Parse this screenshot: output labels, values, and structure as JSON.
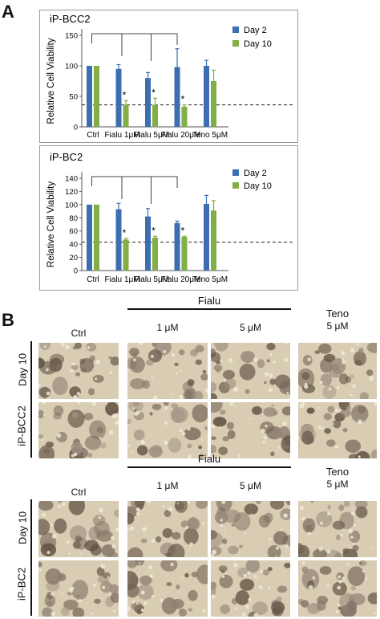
{
  "panel_a": {
    "letter": "A"
  },
  "panel_b": {
    "letter": "B"
  },
  "chart_data": [
    {
      "type": "bar",
      "title": "iP-BCC2",
      "ylabel": "Relative Cell Viability",
      "xlabel": "",
      "categories": [
        "Ctrl",
        "Fialu 1μM",
        "Fialu 5μM",
        "Fialu 20μM",
        "Teno 5μM"
      ],
      "ylim": [
        0,
        150
      ],
      "yticks": [
        "0",
        "50",
        "100",
        "150"
      ],
      "ytick_values": [
        0,
        50,
        100,
        150
      ],
      "legend_position": "top-right",
      "series": [
        {
          "name": "Day 2",
          "color": "#3d6eb0",
          "values": [
            100,
            95,
            80,
            98,
            100
          ],
          "errors": [
            0,
            7,
            9,
            30,
            9
          ]
        },
        {
          "name": "Day 10",
          "color": "#83ad45",
          "values": [
            100,
            36,
            36,
            33,
            75
          ],
          "errors": [
            0,
            7,
            11,
            3,
            18
          ]
        }
      ],
      "threshold": 36,
      "significance_marks": [
        "",
        "*",
        "*",
        "*",
        ""
      ]
    },
    {
      "type": "bar",
      "title": "iP-BC2",
      "ylabel": "Relative Cell Viability",
      "xlabel": "",
      "categories": [
        "Ctrl",
        "Fialu 1μM",
        "Fialu 5μM",
        "Fialu 20μM",
        "Teno 5μM"
      ],
      "ylim": [
        0,
        140
      ],
      "yticks": [
        "0",
        "20",
        "40",
        "60",
        "80",
        "100",
        "120",
        "140"
      ],
      "ytick_values": [
        0,
        20,
        40,
        60,
        80,
        100,
        120,
        140
      ],
      "legend_position": "top-right",
      "series": [
        {
          "name": "Day 2",
          "color": "#3d6eb0",
          "values": [
            100,
            93,
            82,
            72,
            101
          ],
          "errors": [
            0,
            9,
            12,
            3,
            13
          ]
        },
        {
          "name": "Day 10",
          "color": "#83ad45",
          "values": [
            100,
            47,
            50,
            51,
            91
          ],
          "errors": [
            0,
            2,
            2,
            1,
            15
          ]
        }
      ],
      "threshold": 43,
      "significance_marks": [
        "",
        "*",
        "*",
        "*",
        ""
      ]
    }
  ],
  "micrographs": {
    "fialu_label": "Fialu",
    "dose_1": "1 μM",
    "dose_5": "5 μM",
    "teno_label": "Teno",
    "teno_dose": "5 μM",
    "ctrl_label": "Ctrl",
    "day_label": "Day 10",
    "line_1": "iP-BCC2",
    "line_2": "iP-BC2"
  }
}
